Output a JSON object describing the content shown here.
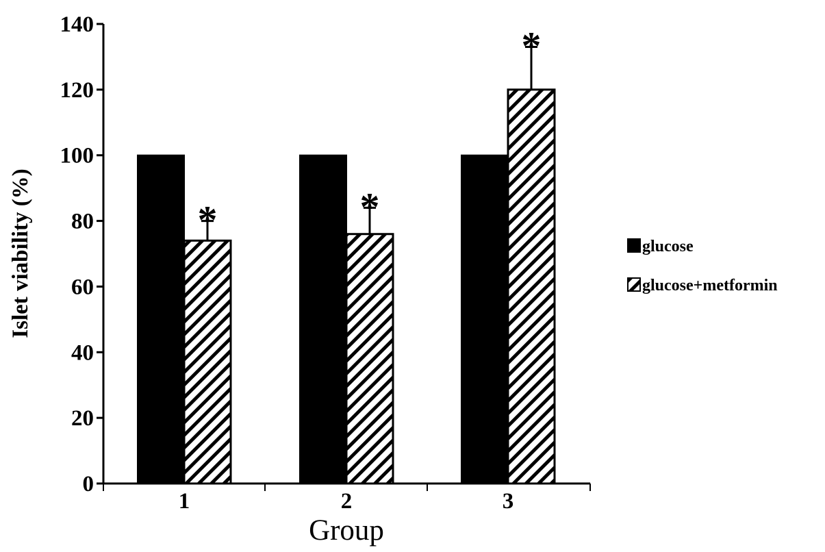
{
  "chart_data": {
    "type": "bar",
    "title": "",
    "xlabel": "Group",
    "ylabel": "Islet viability (%)",
    "ylim": [
      0,
      140
    ],
    "yticks": [
      0,
      20,
      40,
      60,
      80,
      100,
      120,
      140
    ],
    "ytick_labels": [
      "0",
      "20",
      "40",
      "60",
      "80",
      "100",
      "120",
      "140"
    ],
    "categories": [
      "1",
      "2",
      "3"
    ],
    "series": [
      {
        "name": "glucose",
        "values": [
          100,
          100,
          100
        ],
        "fill": "solid",
        "color": "#000000"
      },
      {
        "name": "glucose+metformin",
        "values": [
          74,
          76,
          120
        ],
        "errors": [
          6,
          8,
          13
        ],
        "significance": [
          "*",
          "*",
          "*"
        ],
        "fill": "diagonal-hatch",
        "color": "#000000"
      }
    ],
    "grid": false,
    "legend": "right",
    "legend_entries": [
      "glucose",
      "glucose+metformin"
    ]
  }
}
